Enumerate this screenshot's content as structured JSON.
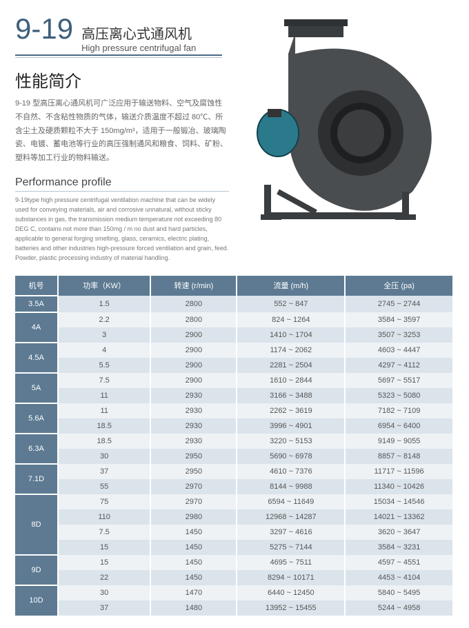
{
  "header": {
    "model": "9-19",
    "title_cn": "高压离心式通风机",
    "title_en": "High pressure centrifugal fan"
  },
  "perf": {
    "heading_cn": "性能简介",
    "desc_cn": "9-19 型高压离心通风机可广泛应用于输送物料、空气及腐蚀性不自然、不含粘性物质的气体，输送介质温度不超过 80℃、所含尘土及硬质颗粒不大于 150mg/m³，适用于一般锻冶、玻璃陶瓷、电镀、蓄电池等行业的高压强制通风和粮食、饲料、矿粉、塑料等加工行业的物料输送。",
    "heading_en": "Performance profile",
    "desc_en": "9-19type high pressure centrifugal ventilation machine that can be widely used for conveying materials, air and corrosive unnatural, without sticky substances in gas, the transmission medium temperature not exceeding 80 DEG C, contains not more than 150mg / m no dust and hard particles, applicable to general forging smelting, glass, ceramics, electric plating, batteries and other industries high-pressure forced ventilation and grain, feed. Powder, plastic processing industry of material handling."
  },
  "table": {
    "headers": [
      "机号",
      "功率（KW）",
      "转速 (r/min)",
      "流量 (m/h)",
      "全压 (pa)"
    ],
    "groups": [
      {
        "model": "3.5A",
        "rows": [
          [
            "1.5",
            "2800",
            "552 ~ 847",
            "2745 ~ 2744"
          ]
        ]
      },
      {
        "model": "4A",
        "rows": [
          [
            "2.2",
            "2800",
            "824 ~ 1264",
            "3584 ~ 3597"
          ],
          [
            "3",
            "2900",
            "1410 ~ 1704",
            "3507 ~ 3253"
          ]
        ]
      },
      {
        "model": "4.5A",
        "rows": [
          [
            "4",
            "2900",
            "1174 ~ 2062",
            "4603 ~ 4447"
          ],
          [
            "5.5",
            "2900",
            "2281 ~ 2504",
            "4297 ~ 4112"
          ]
        ]
      },
      {
        "model": "5A",
        "rows": [
          [
            "7.5",
            "2900",
            "1610 ~ 2844",
            "5697 ~ 5517"
          ],
          [
            "11",
            "2930",
            "3166 ~ 3488",
            "5323 ~ 5080"
          ]
        ]
      },
      {
        "model": "5.6A",
        "rows": [
          [
            "11",
            "2930",
            "2262 ~ 3619",
            "7182 ~ 7109"
          ],
          [
            "18.5",
            "2930",
            "3996 ~ 4901",
            "6954 ~ 6400"
          ]
        ]
      },
      {
        "model": "6.3A",
        "rows": [
          [
            "18.5",
            "2930",
            "3220 ~ 5153",
            "9149 ~ 9055"
          ],
          [
            "30",
            "2950",
            "5690 ~ 6978",
            "8857 ~ 8148"
          ]
        ]
      },
      {
        "model": "7.1D",
        "rows": [
          [
            "37",
            "2950",
            "4610 ~ 7376",
            "11717 ~ 11596"
          ],
          [
            "55",
            "2970",
            "8144 ~ 9988",
            "11340 ~ 10426"
          ]
        ]
      },
      {
        "model": "8D",
        "rows": [
          [
            "75",
            "2970",
            "6594 ~ 11649",
            "15034 ~ 14546"
          ],
          [
            "110",
            "2980",
            "12968 ~ 14287",
            "14021 ~ 13362"
          ],
          [
            "7.5",
            "1450",
            "3297 ~ 4616",
            "3620 ~ 3647"
          ],
          [
            "15",
            "1450",
            "5275 ~ 7144",
            "3584 ~ 3231"
          ]
        ]
      },
      {
        "model": "9D",
        "rows": [
          [
            "15",
            "1450",
            "4695 ~ 7511",
            "4597 ~ 4551"
          ],
          [
            "22",
            "1450",
            "8294 ~ 10171",
            "4453 ~ 4104"
          ]
        ]
      },
      {
        "model": "10D",
        "rows": [
          [
            "30",
            "1470",
            "6440 ~ 12450",
            "5840 ~ 5495"
          ],
          [
            "37",
            "1480",
            "13952 ~ 15455",
            "5244 ~ 4958"
          ]
        ]
      }
    ]
  },
  "colors": {
    "header_bg": "#5d7a92",
    "row_odd": "#dbe4eb",
    "row_even": "#eef2f5",
    "accent": "#3e5f7a"
  }
}
